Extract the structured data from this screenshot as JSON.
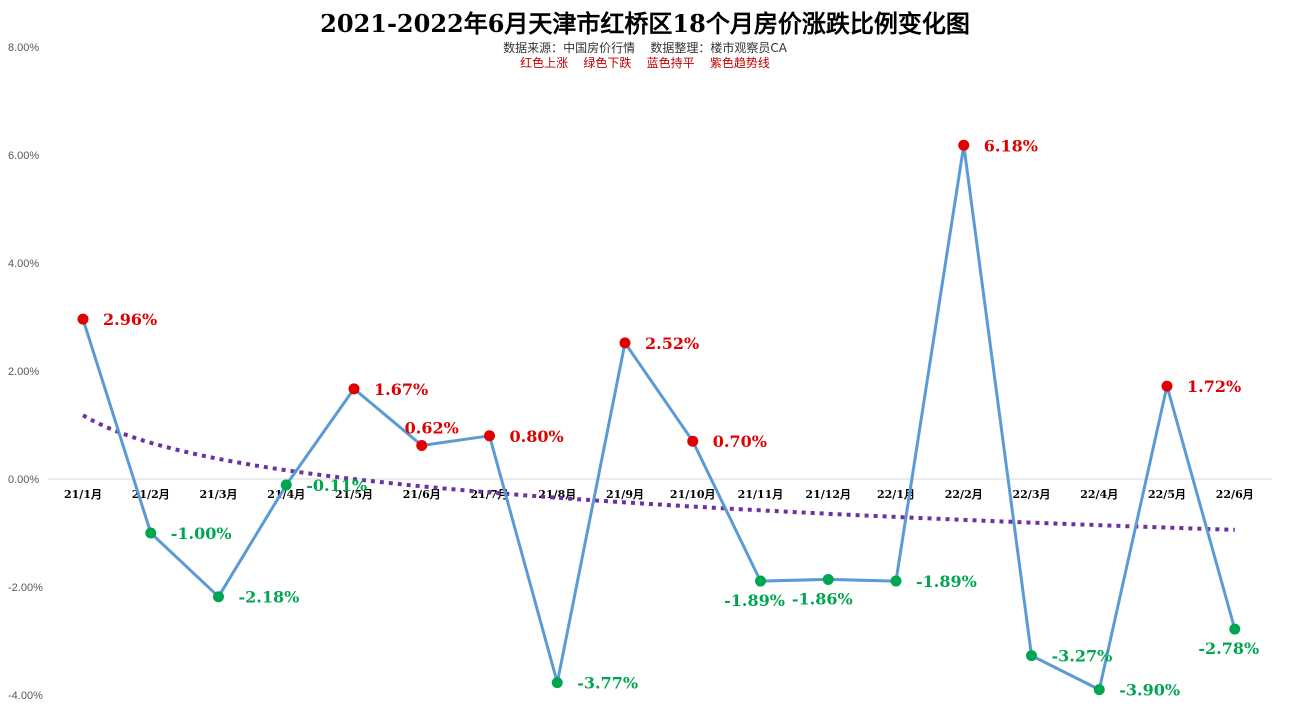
{
  "colors": {
    "up": "#e00000",
    "down": "#00a550",
    "flat": "#0070c0",
    "trend": "#7030a0",
    "line": "#5b9bd5",
    "axis": "#d9d9d9"
  },
  "chart_data": {
    "type": "line",
    "title": "2021-2022年6月天津市红桥区18个月房价涨跌比例变化图",
    "subtitle": "数据来源：中国房价行情    数据整理：楼市观察员CA",
    "legend": "红色上涨    绿色下跌    蓝色持平    紫色趋势线",
    "categories": [
      "21/1月",
      "21/2月",
      "21/3月",
      "21/4月",
      "21/5月",
      "21/6月",
      "21/7月",
      "21/8月",
      "21/9月",
      "21/10月",
      "21/11月",
      "21/12月",
      "22/1月",
      "22/2月",
      "22/3月",
      "22/4月",
      "22/5月",
      "22/6月"
    ],
    "series": [
      {
        "values": [
          2.96,
          -1.0,
          -2.18,
          -0.11,
          1.67,
          0.62,
          0.8,
          -3.77,
          2.52,
          0.7,
          -1.89,
          -1.86,
          -1.89,
          6.18,
          -3.27,
          -3.9,
          1.72,
          -2.78
        ]
      }
    ],
    "data_labels": [
      "2.96%",
      "-1.00%",
      "-2.18%",
      "-0.11%",
      "1.67%",
      "0.62%",
      "0.80%",
      "-3.77%",
      "2.52%",
      "0.70%",
      "-1.89%",
      "-1.86%",
      "-1.89%",
      "6.18%",
      "-3.27%",
      "-3.90%",
      "1.72%",
      "-2.78%"
    ],
    "trendline": {
      "type": "logarithmic",
      "style": "dotted",
      "color": "#7030a0"
    },
    "ylim": [
      -4,
      8
    ],
    "yticks": [
      8,
      6,
      4,
      2,
      0,
      -2,
      -4
    ],
    "ytick_labels": [
      "8.00%",
      "6.00%",
      "4.00%",
      "2.00%",
      "0.00%",
      "-2.00%",
      "-4.00%"
    ],
    "grid": false
  }
}
